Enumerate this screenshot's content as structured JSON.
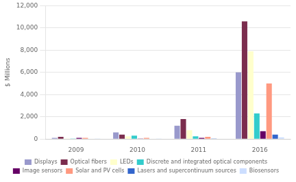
{
  "chart_data": {
    "type": "bar",
    "categories": [
      "2009",
      "2010",
      "2011",
      "2016"
    ],
    "series": [
      {
        "name": "Displays",
        "color": "#9999CC",
        "values": [
          100,
          600,
          1200,
          6000
        ]
      },
      {
        "name": "Optical fibers",
        "color": "#7B2D4E",
        "values": [
          200,
          400,
          1800,
          10600
        ]
      },
      {
        "name": "LEDs",
        "color": "#FFFFCC",
        "values": [
          50,
          250,
          800,
          7900
        ]
      },
      {
        "name": "Discrete and integrated optical components",
        "color": "#33CCCC",
        "values": [
          50,
          300,
          250,
          2300
        ]
      },
      {
        "name": "Image sensors",
        "color": "#660066",
        "values": [
          100,
          50,
          100,
          700
        ]
      },
      {
        "name": "Solar and PV cells",
        "color": "#FF9980",
        "values": [
          100,
          100,
          200,
          5000
        ]
      },
      {
        "name": "Lasers and supercontinuum sources",
        "color": "#3366CC",
        "values": [
          30,
          30,
          50,
          400
        ]
      },
      {
        "name": "Biosensors",
        "color": "#CCDEFF",
        "values": [
          20,
          20,
          30,
          150
        ]
      }
    ],
    "ylabel": "$ Millions",
    "ylim": [
      0,
      12000
    ],
    "yticks": [
      0,
      {
        "value": 2000,
        "label": "2,000"
      },
      {
        "value": 4000,
        "label": "4,000"
      },
      {
        "value": 6000,
        "label": "6,000"
      },
      {
        "value": 8000,
        "label": "8,000"
      },
      {
        "value": 10000,
        "label": "10,000"
      },
      {
        "value": 12000,
        "label": "12,000"
      }
    ],
    "grid": true,
    "legend": "bottom"
  }
}
